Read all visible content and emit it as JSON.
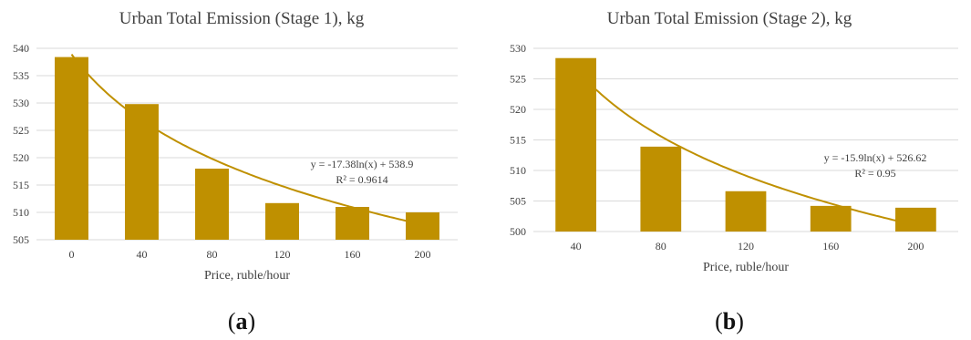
{
  "chart_data": [
    {
      "type": "bar",
      "title": "Urban Total Emission (Stage 1), kg",
      "xlabel": "Price, ruble/hour",
      "ylabel": "",
      "categories": [
        "0",
        "40",
        "80",
        "120",
        "160",
        "200"
      ],
      "values": [
        538.4,
        529.8,
        518.0,
        511.7,
        511.0,
        510.0
      ],
      "ylim": [
        505,
        540
      ],
      "yticks": [
        "505",
        "510",
        "515",
        "520",
        "525",
        "530",
        "535",
        "540"
      ],
      "bar_color": "#BF9000",
      "grid": true,
      "trendline": {
        "type": "logarithmic",
        "a": -17.38,
        "b": 538.9,
        "equation": "y = -17.38ln(x) + 538.9",
        "r2": "R² = 0.9614"
      },
      "panel_label": "(a)"
    },
    {
      "type": "bar",
      "title": "Urban Total Emission (Stage 2), kg",
      "xlabel": "Price, ruble/hour",
      "ylabel": "",
      "categories": [
        "40",
        "80",
        "120",
        "160",
        "200"
      ],
      "values": [
        528.4,
        513.9,
        506.6,
        504.2,
        503.9
      ],
      "ylim": [
        500,
        530
      ],
      "yticks": [
        "500",
        "505",
        "510",
        "515",
        "520",
        "525",
        "530"
      ],
      "bar_color": "#BF9000",
      "grid": true,
      "trendline": {
        "type": "logarithmic",
        "a": -15.9,
        "b": 526.62,
        "equation": "y = -15.9ln(x) + 526.62",
        "r2": "R² = 0.95"
      },
      "panel_label": "(b)"
    }
  ]
}
